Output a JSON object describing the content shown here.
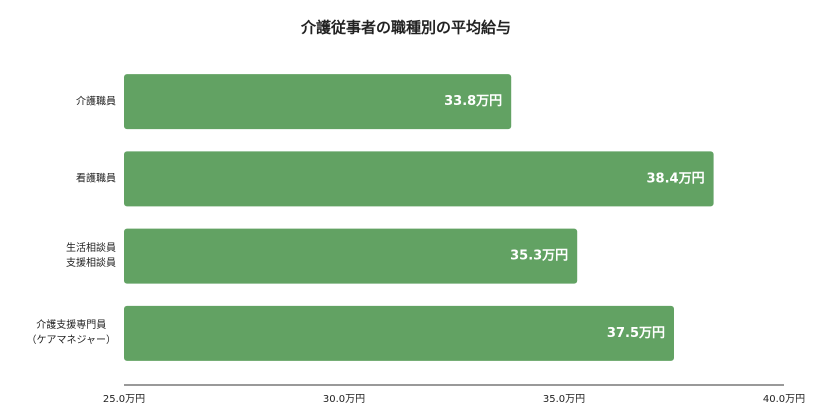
{
  "chart_data": {
    "type": "bar",
    "orientation": "horizontal",
    "title": "介護従事者の職種別の平均給与",
    "categories": [
      "介護職員",
      "看護職員",
      "生活相談員\n支援相談員",
      "介護支援専門員\n（ケアマネジャー）"
    ],
    "values": [
      33.8,
      38.4,
      35.3,
      37.5
    ],
    "value_labels": [
      "33.8万円",
      "38.4万円",
      "35.3万円",
      "37.5万円"
    ],
    "color": "#62a263",
    "xlim": [
      25,
      40
    ],
    "xticks": [
      {
        "value": 25,
        "label": "25.0万円"
      },
      {
        "value": 30,
        "label": "30.0万円"
      },
      {
        "value": 35,
        "label": "35.0万円"
      },
      {
        "value": 40,
        "label": "40.0万円"
      }
    ]
  }
}
